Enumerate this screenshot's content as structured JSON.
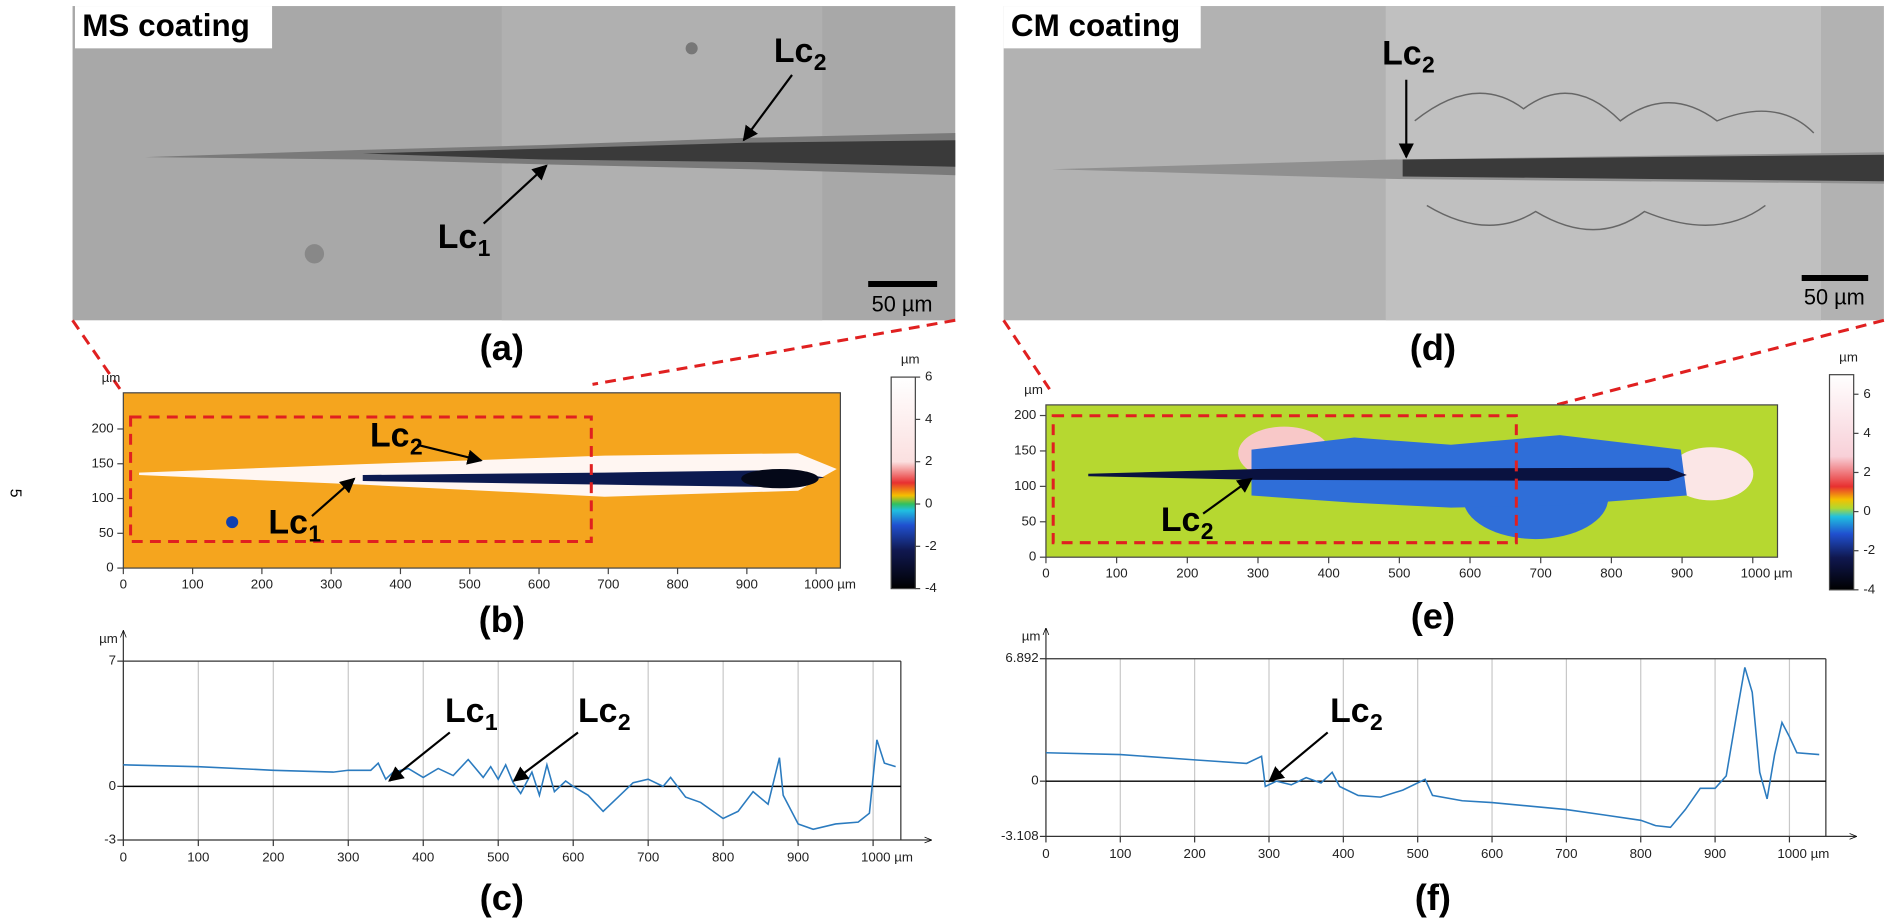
{
  "side_number": "5",
  "images": [
    {
      "title": "MS coating",
      "scale_bar": "50 µm",
      "caption": "(a)",
      "annotations": [
        {
          "text": "Lc",
          "sub": "2"
        },
        {
          "text": "Lc",
          "sub": "1"
        }
      ]
    },
    {
      "title": "CM coating",
      "scale_bar": "50 µm",
      "caption": "(d)",
      "annotations": [
        {
          "text": "Lc",
          "sub": "2"
        }
      ]
    }
  ],
  "chart_data": [
    {
      "type": "map",
      "caption": "(b)",
      "y_unit": "µm",
      "xlim": [
        0,
        1035
      ],
      "ylim": [
        0,
        252
      ],
      "xticks": [
        0,
        100,
        200,
        300,
        400,
        500,
        600,
        700,
        800,
        900,
        {
          "value": 1000,
          "label": "1000 µm"
        }
      ],
      "yticks": [
        0,
        50,
        100,
        150,
        200
      ],
      "colorbar": {
        "unit": "µm",
        "lim": [
          -4,
          6
        ],
        "ticks": [
          6,
          4,
          2,
          0,
          -2,
          -4
        ]
      },
      "annotations": [
        {
          "text": "Lc",
          "sub": "2"
        },
        {
          "text": "Lc",
          "sub": "1"
        }
      ]
    },
    {
      "type": "line",
      "caption": "(c)",
      "y_unit": "µm",
      "color": "#2b7bbf",
      "xlim": [
        0,
        1037
      ],
      "ylim": [
        -3,
        7
      ],
      "xticks": [
        0,
        100,
        200,
        300,
        400,
        500,
        600,
        700,
        800,
        900,
        {
          "value": 1000,
          "label": "1000 µm"
        }
      ],
      "yticks": [
        7,
        0,
        -3
      ],
      "x": [
        0,
        100,
        200,
        280,
        300,
        330,
        340,
        350,
        360,
        380,
        400,
        420,
        440,
        460,
        480,
        490,
        500,
        510,
        520,
        530,
        545,
        555,
        565,
        575,
        590,
        600,
        620,
        640,
        660,
        680,
        700,
        720,
        730,
        750,
        770,
        800,
        820,
        840,
        860,
        875,
        880,
        900,
        920,
        950,
        980,
        995,
        1005,
        1015,
        1030
      ],
      "values": [
        1.2,
        1.1,
        0.9,
        0.8,
        0.9,
        0.9,
        1.3,
        0.4,
        0.8,
        1.0,
        0.5,
        1.0,
        0.6,
        1.5,
        0.5,
        1.1,
        0.4,
        1.2,
        0.2,
        -0.4,
        0.8,
        -0.5,
        1.2,
        -0.3,
        0.3,
        0.0,
        -0.5,
        -1.4,
        -0.6,
        0.2,
        0.4,
        0.0,
        0.5,
        -0.6,
        -0.9,
        -1.8,
        -1.4,
        -0.3,
        -1.0,
        1.6,
        -0.5,
        -2.1,
        -2.4,
        -2.1,
        -2.0,
        -1.5,
        2.6,
        1.3,
        1.1
      ],
      "annotations": [
        {
          "text": "Lc",
          "sub": "1"
        },
        {
          "text": "Lc",
          "sub": "2"
        }
      ]
    },
    {
      "type": "map",
      "caption": "(e)",
      "y_unit": "µm",
      "xlim": [
        0,
        1035
      ],
      "ylim": [
        0,
        215
      ],
      "xticks": [
        0,
        100,
        200,
        300,
        400,
        500,
        600,
        700,
        800,
        900,
        {
          "value": 1000,
          "label": "1000 µm"
        }
      ],
      "yticks": [
        0,
        50,
        100,
        150,
        200
      ],
      "colorbar": {
        "unit": "µm",
        "lim": [
          -4,
          7
        ],
        "ticks": [
          6,
          4,
          2,
          0,
          -2,
          -4
        ]
      },
      "annotations": [
        {
          "text": "Lc",
          "sub": "2"
        }
      ]
    },
    {
      "type": "line",
      "caption": "(f)",
      "y_unit": "µm",
      "color": "#2b7bbf",
      "xlim": [
        0,
        1049
      ],
      "ylim": [
        -3.108,
        6.892
      ],
      "xticks": [
        0,
        100,
        200,
        300,
        400,
        500,
        600,
        700,
        800,
        900,
        {
          "value": 1000,
          "label": "1000 µm"
        }
      ],
      "yticks": [
        6.892,
        0,
        -3.108
      ],
      "x": [
        0,
        100,
        200,
        270,
        290,
        295,
        310,
        330,
        350,
        370,
        385,
        395,
        420,
        450,
        480,
        510,
        520,
        560,
        600,
        650,
        700,
        750,
        800,
        820,
        840,
        860,
        880,
        900,
        915,
        930,
        940,
        950,
        960,
        970,
        980,
        990,
        1000,
        1010,
        1040
      ],
      "values": [
        1.6,
        1.5,
        1.2,
        1.0,
        1.4,
        -0.3,
        0.0,
        -0.2,
        0.2,
        -0.1,
        0.5,
        -0.3,
        -0.8,
        -0.9,
        -0.5,
        0.1,
        -0.8,
        -1.1,
        -1.2,
        -1.4,
        -1.6,
        -1.9,
        -2.2,
        -2.5,
        -2.6,
        -1.6,
        -0.4,
        -0.4,
        0.3,
        4.0,
        6.4,
        5.0,
        0.5,
        -1.0,
        1.5,
        3.3,
        2.5,
        1.6,
        1.5
      ],
      "annotations": [
        {
          "text": "Lc",
          "sub": "2"
        }
      ]
    }
  ]
}
